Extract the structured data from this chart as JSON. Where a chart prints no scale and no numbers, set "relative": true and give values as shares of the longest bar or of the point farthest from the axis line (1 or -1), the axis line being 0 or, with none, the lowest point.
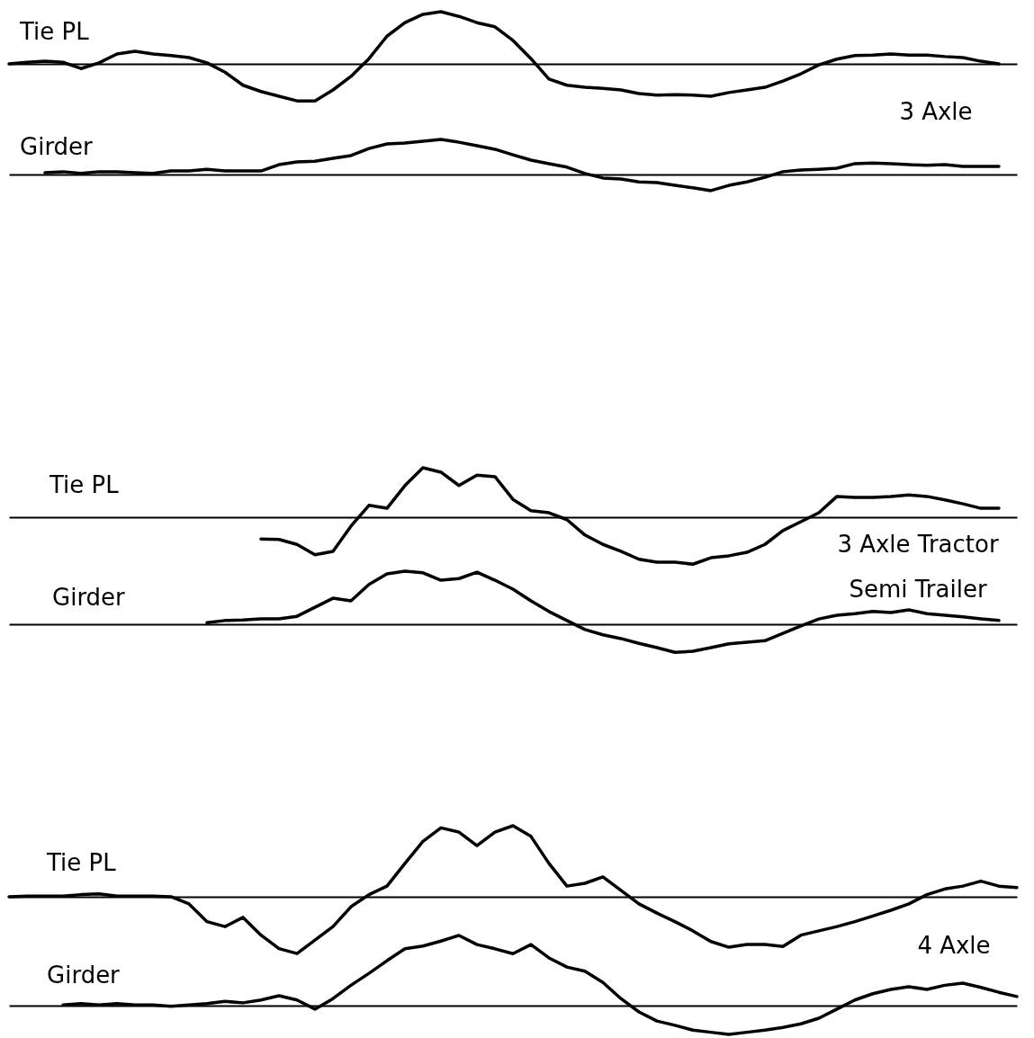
{
  "chart_data": [
    {
      "type": "line",
      "relative": true,
      "categories": [
        null,
        null,
        null,
        null,
        null,
        null,
        null,
        null,
        null,
        null,
        null,
        null,
        null,
        null,
        null,
        null,
        null,
        null,
        null,
        null,
        null,
        null,
        null,
        null,
        null,
        null,
        null,
        null,
        null,
        null,
        null,
        null,
        null,
        null,
        null,
        null,
        null,
        null,
        null,
        null,
        null,
        null,
        null,
        null,
        null,
        null,
        null,
        null,
        null,
        null,
        null,
        null,
        null,
        null,
        null,
        null,
        null
      ],
      "series": [
        {
          "name": "Tie PL",
          "color": "#000000",
          "values": [
            0,
            0.03,
            0.05,
            0.03,
            -0.09,
            0.02,
            0.19,
            0.24,
            0.19,
            0.16,
            0.12,
            0.02,
            -0.16,
            -0.41,
            -0.53,
            -0.62,
            -0.71,
            -0.71,
            -0.5,
            -0.24,
            0.1,
            0.53,
            0.79,
            0.95,
            1,
            0.91,
            0.79,
            0.71,
            0.45,
            0.1,
            -0.29,
            -0.41,
            -0.45,
            -0.47,
            -0.5,
            -0.57,
            -0.6,
            -0.59,
            -0.6,
            -0.62,
            -0.55,
            -0.5,
            -0.45,
            -0.33,
            -0.19,
            -0.02,
            0.09,
            0.16,
            0.17,
            0.19,
            0.17,
            0.17,
            0.14,
            0.12,
            0.05,
            0,
            null
          ]
        }
      ],
      "annotations": [
        "3 Axle"
      ]
    },
    {
      "type": "line",
      "relative": true,
      "categories": [
        null,
        null,
        null,
        null,
        null,
        null,
        null,
        null,
        null,
        null,
        null,
        null,
        null,
        null,
        null,
        null,
        null,
        null,
        null,
        null,
        null,
        null,
        null,
        null,
        null,
        null,
        null,
        null,
        null,
        null,
        null,
        null,
        null,
        null,
        null,
        null,
        null,
        null,
        null,
        null,
        null,
        null,
        null,
        null,
        null,
        null,
        null,
        null,
        null,
        null,
        null,
        null,
        null,
        null,
        null,
        null,
        null
      ],
      "series": [
        {
          "name": "Girder",
          "color": "#000000",
          "values": [
            null,
            null,
            0.05,
            0.08,
            0.03,
            0.08,
            0.08,
            0.05,
            0.03,
            0.1,
            0.1,
            0.15,
            0.1,
            0.1,
            0.1,
            0.28,
            0.36,
            0.38,
            0.46,
            0.54,
            0.74,
            0.87,
            0.9,
            0.95,
            1,
            0.92,
            0.82,
            0.72,
            0.56,
            0.41,
            0.31,
            0.21,
            0.03,
            -0.1,
            -0.13,
            -0.21,
            -0.23,
            -0.31,
            -0.38,
            -0.46,
            -0.31,
            -0.21,
            -0.08,
            0.08,
            0.13,
            0.15,
            0.18,
            0.31,
            0.33,
            0.31,
            0.28,
            0.26,
            0.28,
            0.23,
            0.23,
            0.23,
            null
          ]
        }
      ]
    },
    {
      "type": "line",
      "relative": true,
      "categories": [
        null,
        null,
        null,
        null,
        null,
        null,
        null,
        null,
        null,
        null,
        null,
        null,
        null,
        null,
        null,
        null,
        null,
        null,
        null,
        null,
        null,
        null,
        null,
        null,
        null,
        null,
        null,
        null,
        null,
        null,
        null,
        null,
        null,
        null,
        null,
        null,
        null,
        null,
        null,
        null,
        null,
        null,
        null,
        null,
        null,
        null,
        null,
        null,
        null,
        null,
        null,
        null,
        null,
        null,
        null,
        null,
        null
      ],
      "series": [
        {
          "name": "Tie PL",
          "color": "#000000",
          "values": [
            null,
            null,
            null,
            null,
            null,
            null,
            null,
            null,
            null,
            null,
            null,
            null,
            null,
            null,
            -0.44,
            -0.45,
            -0.55,
            -0.76,
            -0.69,
            -0.18,
            0.24,
            0.18,
            0.64,
            1,
            0.91,
            0.64,
            0.85,
            0.82,
            0.36,
            0.13,
            0.09,
            -0.05,
            -0.36,
            -0.55,
            -0.69,
            -0.85,
            -0.91,
            -0.91,
            -0.95,
            -0.82,
            -0.78,
            -0.71,
            -0.55,
            -0.27,
            -0.09,
            0.09,
            0.42,
            0.4,
            0.4,
            0.42,
            0.45,
            0.42,
            0.35,
            0.27,
            0.18,
            0.18,
            null
          ]
        }
      ],
      "annotations": [
        "3 Axle Tractor",
        "Semi Trailer"
      ]
    },
    {
      "type": "line",
      "relative": true,
      "categories": [
        null,
        null,
        null,
        null,
        null,
        null,
        null,
        null,
        null,
        null,
        null,
        null,
        null,
        null,
        null,
        null,
        null,
        null,
        null,
        null,
        null,
        null,
        null,
        null,
        null,
        null,
        null,
        null,
        null,
        null,
        null,
        null,
        null,
        null,
        null,
        null,
        null,
        null,
        null,
        null,
        null,
        null,
        null,
        null,
        null,
        null,
        null,
        null,
        null,
        null,
        null,
        null,
        null,
        null,
        null,
        null,
        null
      ],
      "series": [
        {
          "name": "Girder",
          "color": "#000000",
          "values": [
            null,
            null,
            null,
            null,
            null,
            null,
            null,
            null,
            null,
            null,
            null,
            0.03,
            0.07,
            0.08,
            0.1,
            0.1,
            0.15,
            0.32,
            0.49,
            0.44,
            0.75,
            0.95,
            1,
            0.97,
            0.83,
            0.86,
            0.98,
            0.83,
            0.66,
            0.44,
            0.24,
            0.07,
            -0.1,
            -0.2,
            -0.27,
            -0.36,
            -0.44,
            -0.53,
            -0.51,
            -0.44,
            -0.37,
            -0.34,
            -0.31,
            -0.17,
            -0.03,
            0.1,
            0.17,
            0.2,
            0.24,
            0.22,
            0.27,
            0.2,
            0.17,
            0.14,
            0.1,
            0.07,
            null
          ]
        }
      ]
    },
    {
      "type": "line",
      "relative": true,
      "categories": [
        null,
        null,
        null,
        null,
        null,
        null,
        null,
        null,
        null,
        null,
        null,
        null,
        null,
        null,
        null,
        null,
        null,
        null,
        null,
        null,
        null,
        null,
        null,
        null,
        null,
        null,
        null,
        null,
        null,
        null,
        null,
        null,
        null,
        null,
        null,
        null,
        null,
        null,
        null,
        null,
        null,
        null,
        null,
        null,
        null,
        null,
        null,
        null,
        null,
        null,
        null,
        null,
        null,
        null,
        null,
        null,
        null
      ],
      "series": [
        {
          "name": "Tie PL",
          "color": "#000000",
          "values": [
            0,
            0.01,
            0.01,
            0.01,
            0.03,
            0.04,
            0.01,
            0.01,
            0.01,
            0,
            -0.1,
            -0.35,
            -0.42,
            -0.29,
            -0.54,
            -0.73,
            -0.8,
            -0.61,
            -0.42,
            -0.14,
            0.03,
            0.15,
            0.47,
            0.78,
            0.97,
            0.91,
            0.72,
            0.91,
            1,
            0.85,
            0.47,
            0.15,
            0.19,
            0.28,
            0.09,
            -0.1,
            -0.23,
            -0.35,
            -0.48,
            -0.63,
            -0.71,
            -0.67,
            -0.67,
            -0.7,
            -0.54,
            -0.48,
            -0.42,
            -0.35,
            -0.27,
            -0.19,
            -0.1,
            0.03,
            0.11,
            0.15,
            0.22,
            0.15,
            0.13
          ]
        }
      ],
      "annotations": [
        "4 Axle"
      ]
    },
    {
      "type": "line",
      "relative": true,
      "categories": [
        null,
        null,
        null,
        null,
        null,
        null,
        null,
        null,
        null,
        null,
        null,
        null,
        null,
        null,
        null,
        null,
        null,
        null,
        null,
        null,
        null,
        null,
        null,
        null,
        null,
        null,
        null,
        null,
        null,
        null,
        null,
        null,
        null,
        null,
        null,
        null,
        null,
        null,
        null,
        null,
        null,
        null,
        null,
        null,
        null,
        null,
        null,
        null,
        null,
        null,
        null,
        null,
        null,
        null,
        null,
        null,
        null
      ],
      "series": [
        {
          "name": "Girder",
          "color": "#000000",
          "values": [
            null,
            null,
            null,
            0.01,
            0.03,
            0.01,
            0.03,
            0.01,
            0.01,
            -0.01,
            0.01,
            0.03,
            0.06,
            0.04,
            0.08,
            0.14,
            0.08,
            -0.05,
            0.1,
            0.29,
            0.46,
            0.64,
            0.81,
            0.85,
            0.92,
            1,
            0.87,
            0.81,
            0.74,
            0.87,
            0.68,
            0.55,
            0.49,
            0.33,
            0.1,
            -0.09,
            -0.22,
            -0.28,
            -0.35,
            -0.38,
            -0.41,
            -0.38,
            -0.35,
            -0.31,
            -0.26,
            -0.18,
            -0.05,
            0.08,
            0.17,
            0.23,
            0.27,
            0.23,
            0.29,
            0.32,
            0.26,
            0.19,
            0.13
          ]
        }
      ]
    }
  ]
}
